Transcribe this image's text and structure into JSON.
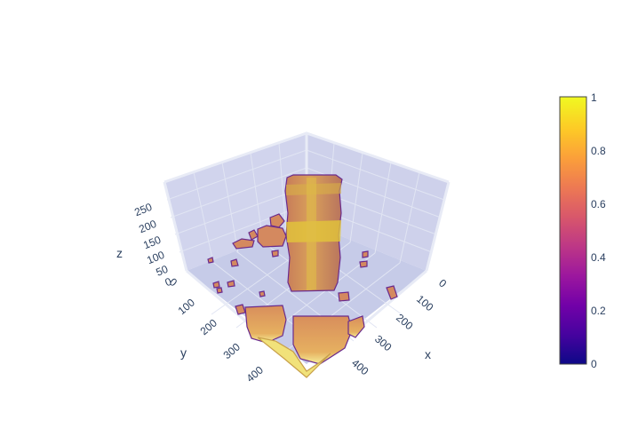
{
  "chart_data": {
    "type": "volume-isosurface-3d",
    "axes": {
      "x": {
        "label": "x",
        "range": [
          0,
          450
        ],
        "ticks": [
          "0",
          "100",
          "200",
          "300",
          "400"
        ]
      },
      "y": {
        "label": "y",
        "range": [
          0,
          450
        ],
        "ticks": [
          "0",
          "100",
          "200",
          "300",
          "400"
        ]
      },
      "z": {
        "label": "z",
        "range": [
          0,
          280
        ],
        "ticks": [
          "0",
          "50",
          "100",
          "150",
          "200",
          "250"
        ]
      }
    },
    "colorbar": {
      "min": 0,
      "max": 1,
      "ticks": [
        "0",
        "0.2",
        "0.4",
        "0.6",
        "0.8",
        "1"
      ],
      "colorscale": [
        "#0d0887",
        "#46039f",
        "#7201a8",
        "#9c179e",
        "#bd3786",
        "#d8576b",
        "#ed7953",
        "#fb9f3a",
        "#fdca26",
        "#f0f921"
      ]
    },
    "colors": {
      "scene_pane": "#c9cdea",
      "surface_main": "#d4895f",
      "surface_outline": "#6a2a8c",
      "highlight": "#e2c63a",
      "gridline": "#dfe3f2"
    }
  }
}
